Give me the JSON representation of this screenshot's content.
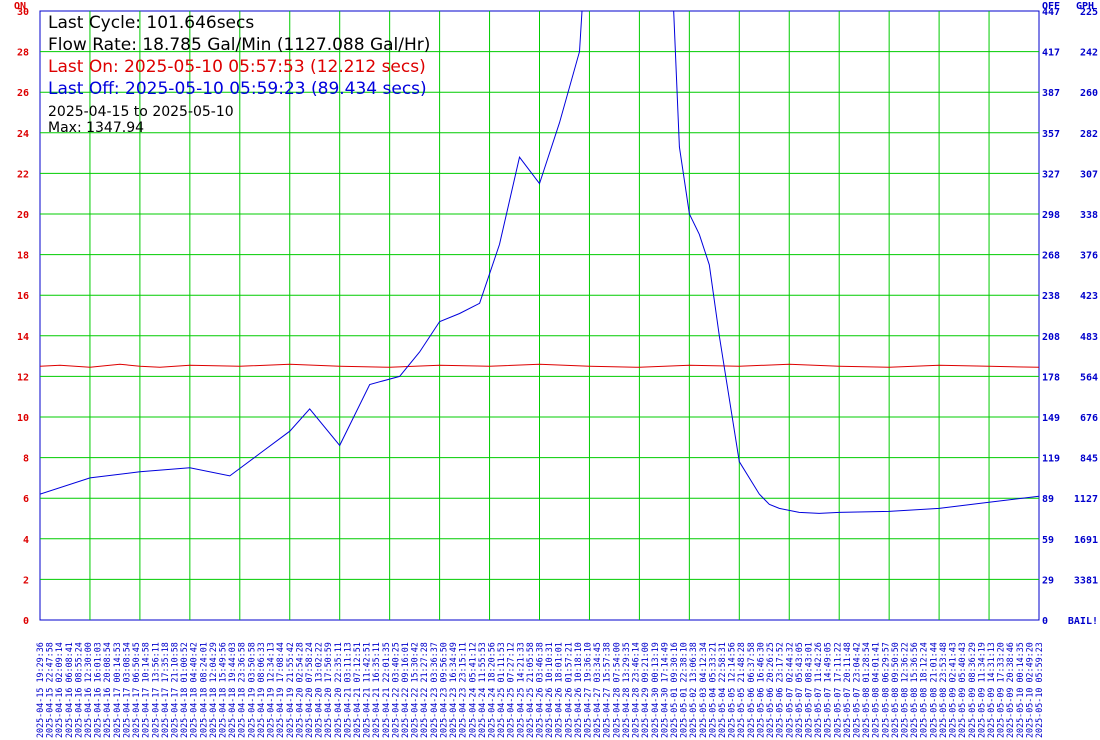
{
  "chart_data": {
    "type": "line",
    "date_range": "2025-04-15 to 2025-05-10",
    "max_label": "Max: 1347.94",
    "stats": {
      "last_cycle": "Last Cycle: 101.646secs",
      "flow_rate": "Flow Rate: 18.785 Gal/Min (1127.088 Gal/Hr)",
      "last_on": "Last On: 2025-05-10 05:57:53 (12.212 secs)",
      "last_off": "Last Off: 2025-05-10 05:59:23 (89.434 secs)"
    },
    "left_axis": {
      "title": "ON",
      "ticks": [
        "0",
        "2",
        "4",
        "6",
        "8",
        "10",
        "12",
        "14",
        "16",
        "18",
        "20",
        "22",
        "24",
        "26",
        "28",
        "30"
      ],
      "ylim": [
        0,
        30
      ]
    },
    "right_axis_off": {
      "title": "OFF",
      "ticks": [
        "0",
        "29",
        "59",
        "89",
        "119",
        "149",
        "178",
        "208",
        "238",
        "268",
        "298",
        "327",
        "357",
        "387",
        "417",
        "447"
      ]
    },
    "right_axis_gph": {
      "title": "GPH",
      "ticks": [
        "BAIL!",
        "3381",
        "1691",
        "1127",
        "845",
        "676",
        "564",
        "483",
        "423",
        "376",
        "338",
        "307",
        "282",
        "260",
        "242",
        "225"
      ]
    },
    "x_ticks": [
      "2025-04-15 19:29:36",
      "2025-04-15 22:47:58",
      "2025-04-16 02:09:14",
      "2025-04-16 06:08:41",
      "2025-04-16 08:55:24",
      "2025-04-16 12:30:00",
      "2025-04-16 16:01:03",
      "2025-04-16 20:08:54",
      "2025-04-17 00:14:53",
      "2025-04-17 03:08:54",
      "2025-04-17 06:50:45",
      "2025-04-17 10:14:58",
      "2025-04-17 13:56:11",
      "2025-04-17 17:35:18",
      "2025-04-17 21:10:58",
      "2025-04-18 01:00:52",
      "2025-04-18 04:40:42",
      "2025-04-18 08:24:01",
      "2025-04-18 12:04:29",
      "2025-04-18 15:49:56",
      "2025-04-18 19:44:03",
      "2025-04-18 23:36:58",
      "2025-04-19 03:50:58",
      "2025-04-19 08:06:33",
      "2025-04-19 12:34:13",
      "2025-04-19 17:08:44",
      "2025-04-19 21:55:42",
      "2025-04-20 02:54:28",
      "2025-04-20 07:58:24",
      "2025-04-20 13:02:22",
      "2025-04-20 17:50:59",
      "2025-04-20 22:35:11",
      "2025-04-21 03:11:13",
      "2025-04-21 07:12:51",
      "2025-04-21 11:42:51",
      "2025-04-21 16:35:11",
      "2025-04-21 22:01:35",
      "2025-04-22 03:40:25",
      "2025-04-22 09:16:01",
      "2025-04-22 15:30:42",
      "2025-04-22 21:27:28",
      "2025-04-23 03:36:37",
      "2025-04-23 09:56:50",
      "2025-04-23 16:34:49",
      "2025-04-23 23:15:11",
      "2025-04-24 05:41:12",
      "2025-04-24 11:55:53",
      "2025-04-24 18:20:56",
      "2025-04-25 01:11:53",
      "2025-04-25 07:27:12",
      "2025-04-25 14:21:33",
      "2025-04-25 21:05:58",
      "2025-04-26 03:46:38",
      "2025-04-26 10:10:31",
      "2025-04-26 18:01:01",
      "2025-04-26 01:57:21",
      "2025-04-26 10:18:10",
      "2025-04-27 19:36:10",
      "2025-04-27 03:34:45",
      "2025-04-27 15:57:38",
      "2025-04-28 07:54:00",
      "2025-04-28 13:29:35",
      "2025-04-28 23:46:14",
      "2025-04-29 09:21:00",
      "2025-04-30 00:13:19",
      "2025-04-30 17:14:49",
      "2025-05-01 09:30:16",
      "2025-05-01 22:38:10",
      "2025-05-02 13:06:38",
      "2025-05-03 04:12:34",
      "2025-05-04 05:33:21",
      "2025-05-04 22:58:31",
      "2025-05-05 12:14:56",
      "2025-05-05 21:48:28",
      "2025-05-06 06:37:58",
      "2025-05-06 16:46:30",
      "2025-05-06 20:26:25",
      "2025-05-06 23:17:52",
      "2025-05-07 02:44:32",
      "2025-05-07 05:43:05",
      "2025-05-07 08:43:01",
      "2025-05-07 11:42:26",
      "2025-05-07 14:49:05",
      "2025-05-07 17:11:22",
      "2025-05-07 20:11:48",
      "2025-05-07 23:04:42",
      "2025-05-08 01:28:54",
      "2025-05-08 04:01:41",
      "2025-05-08 06:29:57",
      "2025-05-08 09:50:50",
      "2025-05-08 12:36:22",
      "2025-05-08 15:36:56",
      "2025-05-08 18:12:24",
      "2025-05-08 21:01:44",
      "2025-05-08 23:53:48",
      "2025-05-09 02:41:43",
      "2025-05-09 05:40:43",
      "2025-05-09 08:36:29",
      "2025-05-09 11:34:19",
      "2025-05-09 14:31:13",
      "2025-05-09 17:33:20",
      "2025-05-09 20:38:46",
      "2025-05-10 00:14:35",
      "2025-05-10 02:49:20",
      "2025-05-10 05:59:23"
    ],
    "series": [
      {
        "color": "#dd0000",
        "axis": "ON",
        "x": [
          0,
          0.02,
          0.05,
          0.08,
          0.1,
          0.12,
          0.15,
          0.2,
          0.25,
          0.3,
          0.35,
          0.4,
          0.45,
          0.5,
          0.55,
          0.6,
          0.65,
          0.7,
          0.75,
          0.8,
          0.85,
          0.9,
          0.95,
          1.0
        ],
        "y": [
          12.5,
          12.55,
          12.45,
          12.6,
          12.5,
          12.45,
          12.55,
          12.5,
          12.6,
          12.5,
          12.45,
          12.55,
          12.5,
          12.6,
          12.5,
          12.45,
          12.55,
          12.5,
          12.6,
          12.5,
          12.45,
          12.55,
          12.5,
          12.45
        ]
      },
      {
        "color": "#0000dd",
        "axis": "OFF",
        "x": [
          0,
          0.05,
          0.1,
          0.15,
          0.19,
          0.22,
          0.25,
          0.27,
          0.3,
          0.33,
          0.36,
          0.38,
          0.4,
          0.42,
          0.44,
          0.46,
          0.48,
          0.5,
          0.52,
          0.54,
          0.55,
          0.56,
          0.58,
          0.6,
          0.62,
          0.63,
          0.64,
          0.65,
          0.66,
          0.67,
          0.68,
          0.7,
          0.72,
          0.73,
          0.74,
          0.76,
          0.78,
          0.8,
          0.85,
          0.9,
          0.95,
          1.0
        ],
        "y": [
          6.2,
          7.0,
          7.3,
          7.5,
          7.1,
          8.2,
          9.3,
          10.4,
          8.6,
          11.6,
          12.0,
          13.2,
          14.7,
          15.1,
          15.6,
          18.5,
          22.8,
          21.5,
          24.5,
          28.0,
          36.0,
          48.0,
          60.0,
          56.0,
          48.0,
          35.0,
          23.3,
          20.0,
          19.0,
          17.5,
          14.0,
          7.8,
          6.2,
          5.7,
          5.5,
          5.3,
          5.25,
          5.3,
          5.35,
          5.5,
          5.8,
          6.1
        ]
      }
    ]
  }
}
